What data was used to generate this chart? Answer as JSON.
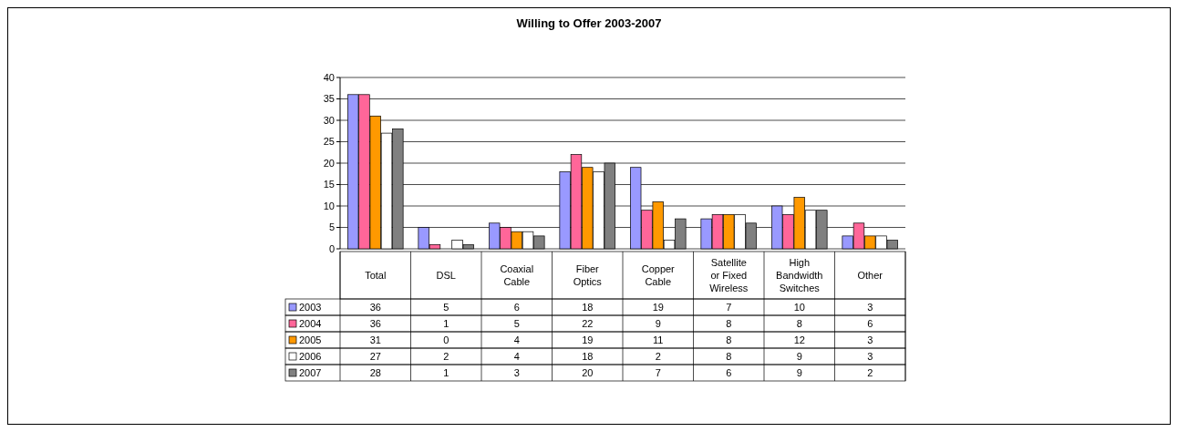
{
  "chart_data": {
    "type": "bar",
    "title": "Willing to Offer 2003-2007",
    "categories": [
      "Total",
      "DSL",
      "Coaxial Cable",
      "Fiber Optics",
      "Copper Cable",
      "Satellite or Fixed Wireless",
      "High Bandwidth Switches",
      "Other"
    ],
    "series": [
      {
        "name": "2003",
        "color": "#9999ff",
        "values": [
          36,
          5,
          6,
          18,
          19,
          7,
          10,
          3
        ]
      },
      {
        "name": "2004",
        "color": "#ff6699",
        "values": [
          36,
          1,
          5,
          22,
          9,
          8,
          8,
          6
        ]
      },
      {
        "name": "2005",
        "color": "#ff9900",
        "values": [
          31,
          0,
          4,
          19,
          11,
          8,
          12,
          3
        ]
      },
      {
        "name": "2006",
        "color": "#ffffff",
        "values": [
          27,
          2,
          4,
          18,
          2,
          8,
          9,
          3
        ]
      },
      {
        "name": "2007",
        "color": "#808080",
        "values": [
          28,
          1,
          3,
          20,
          7,
          6,
          9,
          2
        ]
      }
    ],
    "ylim": [
      0,
      40
    ],
    "yticks": [
      0,
      5,
      10,
      15,
      20,
      25,
      30,
      35,
      40
    ],
    "grid": "y",
    "legend": "bottom",
    "data_labels": true
  }
}
